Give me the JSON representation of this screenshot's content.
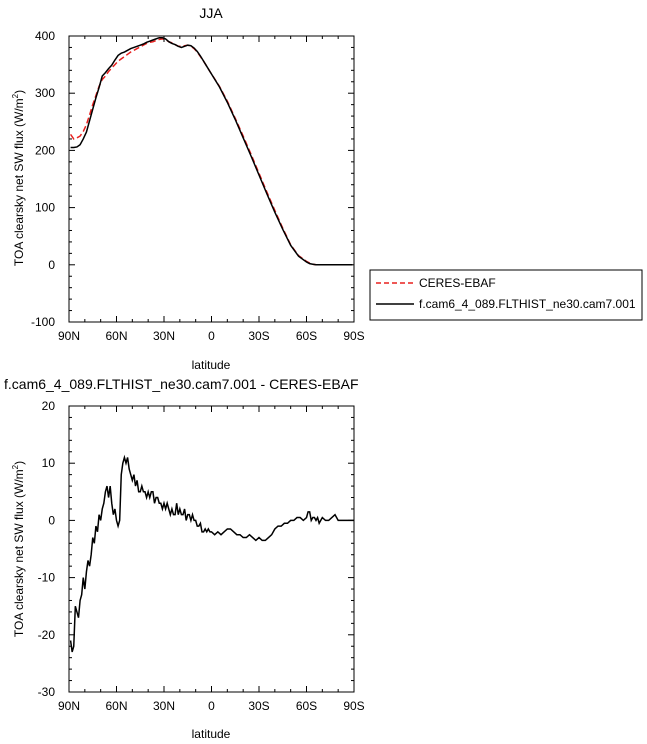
{
  "chart_data": [
    {
      "type": "line",
      "title": "JJA",
      "xlabel": "latitude",
      "ylabel_main": "TOA clearsky net SW flux (W/m",
      "ylabel_sup": "2",
      "ylabel_end": ")",
      "xlim": [
        90,
        -90
      ],
      "ylim": [
        -100,
        400
      ],
      "xticks": [
        90,
        60,
        30,
        0,
        -30,
        -60,
        -90
      ],
      "xtick_labels": [
        "90N",
        "60N",
        "30N",
        "0",
        "30S",
        "60S",
        "90S"
      ],
      "yticks": [
        -100,
        0,
        100,
        200,
        300,
        400
      ],
      "ytick_labels": [
        "-100",
        "0",
        "100",
        "200",
        "300",
        "400"
      ],
      "colors": {
        "CERES-EBAF": "#e8211f",
        "model": "#000000"
      },
      "legend": {
        "placement": "right",
        "entries": [
          "CERES-EBAF",
          "f.cam6_4_089.FLTHIST_ne30.cam7.001"
        ]
      },
      "series": [
        {
          "name": "CERES-EBAF",
          "style": "dashed",
          "x": [
            89,
            87,
            85,
            83,
            81,
            79,
            77,
            75,
            73,
            71,
            69,
            67,
            65,
            63,
            61,
            59,
            57,
            55,
            53,
            51,
            49,
            47,
            45,
            43,
            41,
            39,
            37,
            35,
            33,
            31,
            29,
            27,
            25,
            23,
            21,
            19,
            17,
            15,
            13,
            11,
            9,
            7,
            5,
            3,
            1,
            -5,
            -10,
            -15,
            -20,
            -25,
            -30,
            -35,
            -40,
            -45,
            -50,
            -55,
            -60,
            -62,
            -64,
            -66,
            -68,
            -70,
            -72,
            -75,
            -80,
            -85,
            -89
          ],
          "y": [
            228,
            220,
            222,
            225,
            233,
            245,
            262,
            280,
            296,
            312,
            324,
            330,
            338,
            344,
            350,
            356,
            360,
            364,
            368,
            372,
            375,
            378,
            381,
            384,
            387,
            389,
            390,
            392,
            394,
            395,
            394,
            390,
            388,
            385,
            382,
            382,
            383,
            384,
            382,
            378,
            372,
            364,
            356,
            347,
            338,
            312,
            286,
            256,
            225,
            193,
            160,
            127,
            95,
            64,
            35,
            16,
            6,
            3,
            1,
            0,
            0,
            0,
            0,
            0,
            0,
            0,
            0
          ]
        },
        {
          "name": "f.cam6_4_089.FLTHIST_ne30.cam7.001",
          "style": "solid",
          "x": [
            89,
            87,
            85,
            83,
            81,
            79,
            77,
            75,
            73,
            71,
            69,
            67,
            65,
            63,
            61,
            59,
            57,
            55,
            53,
            51,
            49,
            47,
            45,
            43,
            41,
            39,
            37,
            35,
            33,
            31,
            29,
            27,
            25,
            23,
            21,
            19,
            17,
            15,
            13,
            11,
            9,
            7,
            5,
            3,
            1,
            -5,
            -10,
            -15,
            -20,
            -25,
            -30,
            -35,
            -40,
            -45,
            -50,
            -55,
            -60,
            -62,
            -64,
            -66,
            -68,
            -70,
            -72,
            -75,
            -80,
            -85,
            -89
          ],
          "y": [
            205,
            205,
            206,
            210,
            220,
            232,
            252,
            272,
            292,
            310,
            330,
            336,
            343,
            349,
            358,
            366,
            370,
            372,
            375,
            378,
            380,
            382,
            384,
            386,
            389,
            391,
            393,
            395,
            397,
            397,
            395,
            390,
            387,
            385,
            382,
            380,
            382,
            384,
            383,
            379,
            373,
            365,
            356,
            347,
            338,
            311,
            284,
            254,
            222,
            190,
            157,
            124,
            92,
            62,
            34,
            15,
            5,
            2,
            1,
            0,
            0,
            0,
            0,
            0,
            0,
            0,
            0
          ]
        }
      ]
    },
    {
      "type": "line",
      "title": "f.cam6_4_089.FLTHIST_ne30.cam7.001 - CERES-EBAF",
      "xlabel": "latitude",
      "ylabel_main": "TOA clearsky net SW flux (W/m",
      "ylabel_sup": "2",
      "ylabel_end": ")",
      "xlim": [
        90,
        -90
      ],
      "ylim": [
        -30,
        20
      ],
      "xticks": [
        90,
        60,
        30,
        0,
        -30,
        -60,
        -90
      ],
      "xtick_labels": [
        "90N",
        "60N",
        "30N",
        "0",
        "30S",
        "60S",
        "90S"
      ],
      "yticks": [
        -30,
        -20,
        -10,
        0,
        10,
        20
      ],
      "ytick_labels": [
        "-30",
        "-20",
        "-10",
        "0",
        "10",
        "20"
      ],
      "series": [
        {
          "style": "solid",
          "x": [
            89,
            88,
            87,
            86,
            85,
            84,
            83,
            82,
            81,
            80,
            79,
            78,
            77,
            76,
            75,
            74,
            73,
            72,
            71,
            70,
            69,
            68,
            67,
            66,
            65,
            64,
            63,
            62,
            61,
            60,
            59,
            58,
            57,
            56,
            55,
            54,
            53,
            52,
            51,
            50,
            49,
            48,
            47,
            46,
            45,
            44,
            43,
            42,
            41,
            40,
            39,
            38,
            37,
            36,
            35,
            34,
            33,
            32,
            31,
            30,
            29,
            28,
            27,
            26,
            25,
            24,
            23,
            22,
            21,
            20,
            19,
            18,
            17,
            16,
            15,
            14,
            13,
            12,
            11,
            10,
            9,
            8,
            7,
            6,
            5,
            4,
            3,
            2,
            1,
            0,
            -2,
            -4,
            -6,
            -8,
            -10,
            -12,
            -14,
            -16,
            -18,
            -20,
            -22,
            -24,
            -26,
            -28,
            -30,
            -32,
            -34,
            -36,
            -38,
            -40,
            -42,
            -44,
            -46,
            -48,
            -50,
            -52,
            -54,
            -56,
            -58,
            -60,
            -61,
            -62,
            -63,
            -64,
            -65,
            -66,
            -67,
            -68,
            -70,
            -72,
            -74,
            -76,
            -78,
            -80,
            -82,
            -84,
            -86,
            -88,
            -90
          ],
          "y": [
            -21,
            -23,
            -22,
            -15,
            -16,
            -17,
            -14,
            -13,
            -10,
            -12,
            -9,
            -7,
            -8,
            -6,
            -3,
            -4,
            -1,
            -2,
            1,
            0,
            2,
            3,
            5,
            6,
            4,
            6,
            3,
            1,
            2,
            0,
            -1,
            0,
            8,
            10,
            11,
            10,
            11,
            9,
            8,
            7,
            8,
            6,
            7,
            5,
            5,
            6,
            5,
            5,
            4,
            5,
            4,
            5,
            5,
            3,
            4,
            4,
            3,
            3,
            2,
            3,
            2,
            3,
            2,
            1,
            2,
            1,
            1,
            3,
            1,
            2,
            1,
            1,
            2,
            0,
            1,
            1,
            0,
            1,
            0,
            0,
            -1,
            -1,
            -0.5,
            -2,
            -2,
            -1.5,
            -2,
            -1.5,
            -2,
            -2,
            -2.5,
            -2,
            -2.5,
            -2,
            -1.5,
            -1.5,
            -2,
            -2.5,
            -2.5,
            -3,
            -3,
            -2.5,
            -3,
            -3.5,
            -3,
            -3.5,
            -3.5,
            -3,
            -2.5,
            -1.5,
            -1,
            -1,
            -0.5,
            -0.5,
            0,
            0,
            0.5,
            0.5,
            0,
            0.5,
            1.5,
            1.5,
            0,
            0.5,
            0.5,
            0,
            0.5,
            -0.5,
            0.5,
            0,
            0,
            0.5,
            1,
            0,
            0,
            0,
            0,
            0,
            0
          ]
        }
      ]
    }
  ]
}
